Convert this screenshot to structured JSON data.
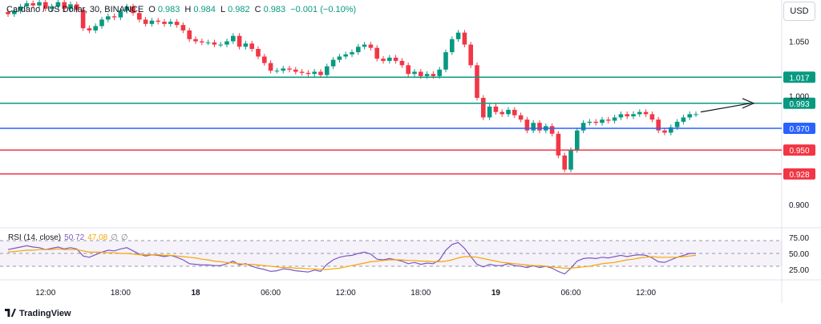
{
  "header": {
    "symbol": "Cardano / US Dollar, 30, BINANCE",
    "o_label": "O",
    "o_value": "0.983",
    "h_label": "H",
    "h_value": "0.984",
    "l_label": "L",
    "l_value": "0.982",
    "c_label": "C",
    "c_value": "0.983",
    "change": "−0.001 (−0.10%)"
  },
  "currency_button": "USD",
  "footer": {
    "brand": "TradingView"
  },
  "rsi": {
    "title": "RSI (14, close)",
    "value": "50.72",
    "ma_value": "47.08",
    "z1": "∅",
    "z2": "∅"
  },
  "chart_data": {
    "type": "candlestick",
    "price_axis": {
      "min": 0.88,
      "max": 1.088,
      "ticks": [
        "1.050",
        "1.000",
        "0.900"
      ]
    },
    "time_axis": {
      "labels": [
        {
          "text": "12:00",
          "i": 6
        },
        {
          "text": "18:00",
          "i": 18
        },
        {
          "text": "18",
          "i": 30
        },
        {
          "text": "06:00",
          "i": 42
        },
        {
          "text": "12:00",
          "i": 54
        },
        {
          "text": "18:00",
          "i": 66
        },
        {
          "text": "19",
          "i": 78
        },
        {
          "text": "06:00",
          "i": 90
        },
        {
          "text": "12:00",
          "i": 102
        }
      ]
    },
    "levels": [
      {
        "value": 1.017,
        "label": "1.017",
        "color": "#089981"
      },
      {
        "value": 0.993,
        "label": "0.993",
        "color": "#089981"
      },
      {
        "value": 0.97,
        "label": "0.970",
        "color": "#2962ff"
      },
      {
        "value": 0.95,
        "label": "0.950",
        "color": "#f23645"
      },
      {
        "value": 0.928,
        "label": "0.928",
        "color": "#f23645"
      }
    ],
    "colors": {
      "up": "#089981",
      "down": "#f23645",
      "rsi": "#7e57c2",
      "rsi_ma": "#f7a600"
    },
    "closes": [
      1.075,
      1.078,
      1.082,
      1.085,
      1.083,
      1.086,
      1.08,
      1.082,
      1.086,
      1.08,
      1.084,
      1.079,
      1.062,
      1.06,
      1.064,
      1.07,
      1.073,
      1.072,
      1.078,
      1.082,
      1.076,
      1.07,
      1.066,
      1.069,
      1.068,
      1.066,
      1.068,
      1.065,
      1.06,
      1.052,
      1.05,
      1.049,
      1.049,
      1.047,
      1.047,
      1.05,
      1.055,
      1.045,
      1.048,
      1.043,
      1.036,
      1.03,
      1.023,
      1.023,
      1.025,
      1.024,
      1.022,
      1.021,
      1.02,
      1.022,
      1.019,
      1.027,
      1.033,
      1.036,
      1.038,
      1.04,
      1.045,
      1.047,
      1.044,
      1.034,
      1.032,
      1.035,
      1.032,
      1.028,
      1.02,
      1.022,
      1.018,
      1.02,
      1.018,
      1.024,
      1.04,
      1.052,
      1.058,
      1.047,
      1.028,
      0.998,
      0.98,
      0.99,
      0.985,
      0.983,
      0.987,
      0.982,
      0.978,
      0.968,
      0.975,
      0.968,
      0.972,
      0.965,
      0.945,
      0.932,
      0.95,
      0.968,
      0.975,
      0.976,
      0.975,
      0.978,
      0.977,
      0.98,
      0.983,
      0.981,
      0.983,
      0.985,
      0.983,
      0.978,
      0.968,
      0.966,
      0.971,
      0.976,
      0.98,
      0.983,
      0.983
    ],
    "rsi_values": [
      56,
      58,
      60,
      62,
      60,
      59,
      56,
      58,
      60,
      57,
      59,
      57,
      46,
      44,
      48,
      52,
      55,
      54,
      57,
      59,
      54,
      49,
      46,
      48,
      47,
      45,
      47,
      44,
      40,
      34,
      33,
      32,
      32,
      31,
      31,
      34,
      38,
      32,
      34,
      30,
      27,
      25,
      22,
      23,
      26,
      25,
      23,
      22,
      21,
      24,
      22,
      33,
      40,
      44,
      46,
      47,
      50,
      52,
      49,
      41,
      40,
      42,
      40,
      38,
      34,
      36,
      33,
      35,
      34,
      40,
      55,
      64,
      67,
      58,
      45,
      33,
      29,
      33,
      31,
      31,
      34,
      31,
      30,
      28,
      31,
      28,
      30,
      27,
      22,
      18,
      27,
      38,
      42,
      43,
      42,
      44,
      43,
      45,
      47,
      45,
      47,
      48,
      47,
      43,
      37,
      36,
      40,
      44,
      47,
      50,
      50
    ],
    "rsi_ma_values": [
      52,
      53,
      54,
      55,
      55,
      56,
      56,
      56,
      57,
      56,
      56,
      56,
      54,
      52,
      52,
      52,
      51,
      51,
      50,
      50,
      49,
      48,
      48,
      48,
      48,
      47,
      47,
      46,
      45,
      44,
      43,
      41,
      40,
      38,
      37,
      36,
      35,
      34,
      33,
      33,
      32,
      31,
      30,
      29,
      28,
      28,
      27,
      27,
      26,
      26,
      25,
      25,
      26,
      27,
      29,
      31,
      33,
      35,
      37,
      38,
      39,
      40,
      40,
      40,
      39,
      39,
      38,
      38,
      37,
      37,
      38,
      40,
      43,
      45,
      45,
      44,
      42,
      40,
      38,
      36,
      35,
      34,
      33,
      32,
      31,
      31,
      30,
      29,
      28,
      27,
      27,
      28,
      29,
      30,
      32,
      34,
      35,
      36,
      38,
      40,
      41,
      43,
      44,
      45,
      44,
      44,
      44,
      44,
      45,
      46,
      47
    ],
    "rsi_axis": {
      "ticks": [
        "75.00",
        "50.00",
        "25.00"
      ]
    }
  }
}
